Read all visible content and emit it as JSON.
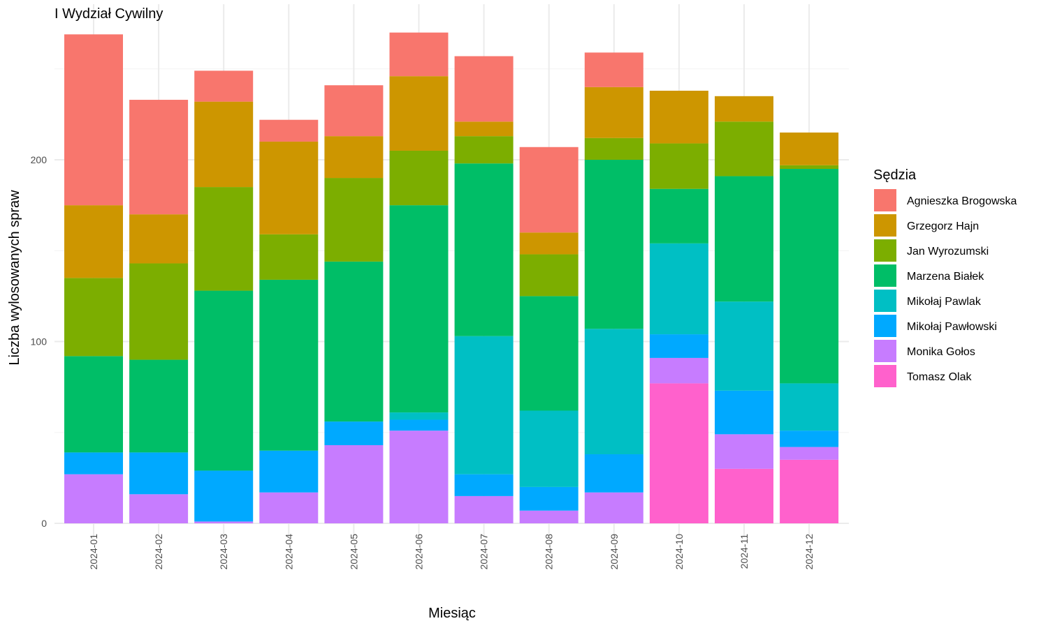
{
  "chart_data": {
    "type": "bar",
    "stacked": true,
    "title": "I Wydział Cywilny",
    "xlabel": "Miesiąc",
    "ylabel": "Liczba wylosowanych spraw",
    "ylim": [
      0,
      270
    ],
    "y_ticks": [
      0,
      100,
      200
    ],
    "grid": true,
    "legend_title": "Sędzia",
    "legend_position": "right",
    "categories": [
      "2024-01",
      "2024-02",
      "2024-03",
      "2024-04",
      "2024-05",
      "2024-06",
      "2024-07",
      "2024-08",
      "2024-09",
      "2024-10",
      "2024-11",
      "2024-12"
    ],
    "series": [
      {
        "name": "Tomasz Olak",
        "color": "#FF61CC",
        "values": [
          0,
          0,
          0,
          0,
          0,
          0,
          0,
          0,
          0,
          77,
          30,
          35
        ]
      },
      {
        "name": "Monika Gołos",
        "color": "#C77CFF",
        "values": [
          27,
          16,
          1,
          17,
          43,
          51,
          15,
          7,
          17,
          14,
          19,
          7
        ]
      },
      {
        "name": "Mikołaj Pawłowski",
        "color": "#00A9FF",
        "values": [
          12,
          23,
          28,
          23,
          13,
          6,
          12,
          13,
          21,
          13,
          24,
          9
        ]
      },
      {
        "name": "Mikołaj Pawlak",
        "color": "#00BFC4",
        "values": [
          0,
          0,
          0,
          0,
          0,
          4,
          76,
          42,
          69,
          50,
          49,
          26
        ]
      },
      {
        "name": "Marzena Białek",
        "color": "#00BE67",
        "values": [
          53,
          51,
          99,
          94,
          88,
          114,
          95,
          63,
          93,
          30,
          69,
          118
        ]
      },
      {
        "name": "Jan Wyrozumski",
        "color": "#7CAE00",
        "values": [
          43,
          53,
          57,
          25,
          46,
          30,
          15,
          23,
          12,
          25,
          30,
          2
        ]
      },
      {
        "name": "Grzegorz Hajn",
        "color": "#CD9600",
        "values": [
          40,
          27,
          47,
          51,
          23,
          41,
          8,
          12,
          28,
          29,
          14,
          18
        ]
      },
      {
        "name": "Agnieszka Brogowska",
        "color": "#F8766D",
        "values": [
          94,
          63,
          17,
          12,
          28,
          24,
          36,
          47,
          19,
          0,
          0,
          0
        ]
      }
    ],
    "legend_order": [
      "Agnieszka Brogowska",
      "Grzegorz Hajn",
      "Jan Wyrozumski",
      "Marzena Białek",
      "Mikołaj Pawlak",
      "Mikołaj Pawłowski",
      "Monika Gołos",
      "Tomasz Olak"
    ]
  }
}
